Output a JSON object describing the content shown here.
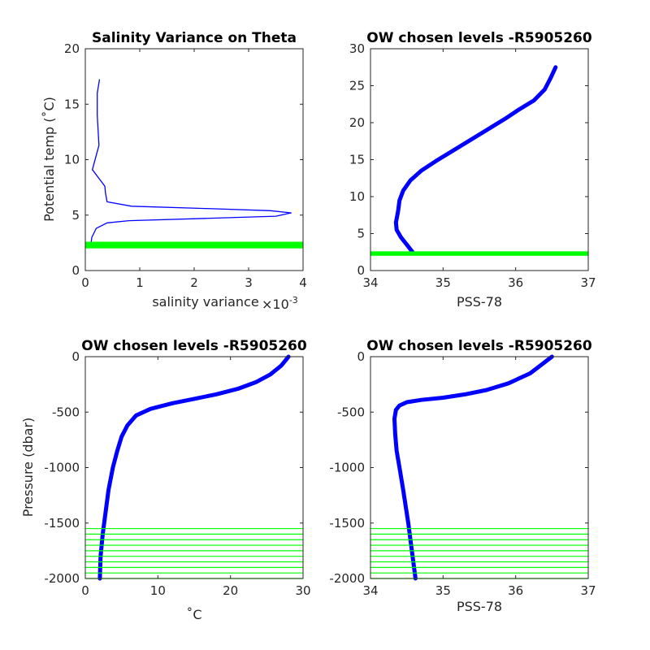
{
  "colors": {
    "profile": "#0000ff",
    "level": "#00ff00",
    "axis": "#262626"
  },
  "chart_data": [
    {
      "type": "line",
      "title": "Salinity Variance on Theta",
      "xlabel": "salinity variance",
      "x_exponent_label": "×10",
      "x_exponent_power": "-3",
      "ylabel": "Potential temp (˚C)",
      "xlim": [
        0,
        4
      ],
      "ylim": [
        0,
        20
      ],
      "xticks": [
        0,
        1,
        2,
        3,
        4
      ],
      "xtick_labels": [
        "0",
        "1",
        "2",
        "3",
        "4"
      ],
      "yticks": [
        0,
        5,
        10,
        15,
        20
      ],
      "ytick_labels": [
        "0",
        "5",
        "10",
        "15",
        "20"
      ],
      "series": [
        {
          "x": [
            0.1,
            0.12,
            0.2,
            0.4,
            0.8,
            2.2,
            3.5,
            3.78,
            3.4,
            2.2,
            0.85,
            0.4,
            0.37,
            0.36,
            0.13,
            0.25,
            0.22,
            0.22,
            0.26
          ],
          "y": [
            2.3,
            3.0,
            3.8,
            4.3,
            4.5,
            4.7,
            4.9,
            5.2,
            5.4,
            5.6,
            5.8,
            6.2,
            7.0,
            7.6,
            9.1,
            11.3,
            14.0,
            16.0,
            17.2
          ]
        }
      ],
      "levels": {
        "type": "band",
        "from": 2.0,
        "to": 2.6
      }
    },
    {
      "type": "line",
      "title": "OW chosen levels -R5905260",
      "xlabel": "PSS-78",
      "ylabel": "",
      "xlim": [
        34,
        37
      ],
      "ylim": [
        0,
        30
      ],
      "xticks": [
        34,
        35,
        36,
        37
      ],
      "xtick_labels": [
        "34",
        "35",
        "36",
        "37"
      ],
      "yticks": [
        0,
        5,
        10,
        15,
        20,
        25,
        30
      ],
      "ytick_labels": [
        "0",
        "5",
        "10",
        "15",
        "20",
        "25",
        "30"
      ],
      "series": [
        {
          "x": [
            34.58,
            34.5,
            34.42,
            34.36,
            34.35,
            34.38,
            34.4,
            34.45,
            34.55,
            34.7,
            34.9,
            35.1,
            35.35,
            35.6,
            35.85,
            36.05,
            36.25,
            36.4,
            36.48,
            36.55
          ],
          "y": [
            2.5,
            3.5,
            4.5,
            5.5,
            6.5,
            8.0,
            9.5,
            10.8,
            12.2,
            13.5,
            14.8,
            16.0,
            17.5,
            19.0,
            20.5,
            21.8,
            23.0,
            24.5,
            26.0,
            27.5
          ]
        }
      ],
      "levels": {
        "type": "band",
        "from": 2.0,
        "to": 2.6
      }
    },
    {
      "type": "line",
      "title": "OW chosen levels -R5905260",
      "xlabel": "˚C",
      "ylabel": "Pressure (dbar)",
      "xlim": [
        0,
        30
      ],
      "ylim": [
        -2000,
        0
      ],
      "xticks": [
        0,
        10,
        20,
        30
      ],
      "xtick_labels": [
        "0",
        "10",
        "20",
        "30"
      ],
      "yticks": [
        -2000,
        -1500,
        -1000,
        -500,
        0
      ],
      "ytick_labels": [
        "-2000",
        "-1500",
        "-1000",
        "-500",
        "0"
      ],
      "series": [
        {
          "x": [
            2.0,
            2.1,
            2.4,
            2.8,
            3.2,
            3.8,
            4.4,
            5.0,
            5.8,
            7.0,
            9.0,
            12.0,
            15.0,
            18.0,
            21.0,
            23.5,
            25.5,
            27.0,
            28.0
          ],
          "y": [
            -2000,
            -1800,
            -1600,
            -1400,
            -1200,
            -1000,
            -850,
            -720,
            -620,
            -530,
            -470,
            -420,
            -380,
            -340,
            -290,
            -230,
            -160,
            -80,
            0
          ]
        }
      ],
      "levels": {
        "type": "lines",
        "values": [
          -1550,
          -1600,
          -1650,
          -1700,
          -1750,
          -1800,
          -1850,
          -1900,
          -1950,
          -2000
        ]
      }
    },
    {
      "type": "line",
      "title": "OW chosen levels -R5905260",
      "xlabel": "PSS-78",
      "ylabel": "",
      "xlim": [
        34,
        37
      ],
      "ylim": [
        -2000,
        0
      ],
      "xticks": [
        34,
        35,
        36,
        37
      ],
      "xtick_labels": [
        "34",
        "35",
        "36",
        "37"
      ],
      "yticks": [
        -2000,
        -1500,
        -1000,
        -500,
        0
      ],
      "ytick_labels": [
        "-2000",
        "-1500",
        "-1000",
        "-500",
        "0"
      ],
      "series": [
        {
          "x": [
            34.62,
            34.58,
            34.52,
            34.45,
            34.4,
            34.36,
            34.34,
            34.33,
            34.35,
            34.4,
            34.5,
            34.7,
            35.0,
            35.3,
            35.6,
            35.9,
            36.2,
            36.5
          ],
          "y": [
            -2000,
            -1800,
            -1500,
            -1200,
            -1000,
            -850,
            -700,
            -560,
            -480,
            -440,
            -410,
            -390,
            -370,
            -340,
            -300,
            -240,
            -150,
            0
          ]
        }
      ],
      "levels": {
        "type": "lines",
        "values": [
          -1550,
          -1600,
          -1650,
          -1700,
          -1750,
          -1800,
          -1850,
          -1900,
          -1950,
          -2000
        ]
      }
    }
  ]
}
